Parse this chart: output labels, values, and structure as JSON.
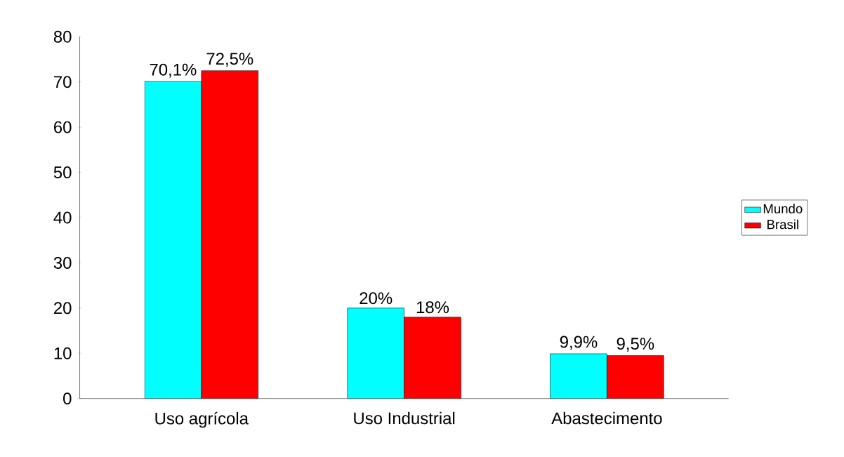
{
  "chart_data": {
    "type": "bar",
    "categories": [
      "Uso agrícola",
      "Uso Industrial",
      "Abastecimento"
    ],
    "series": [
      {
        "name": "Mundo",
        "color": "#00ffff",
        "values": [
          70.1,
          20,
          9.9
        ],
        "value_labels": [
          "70,1%",
          "20%",
          "9,9%"
        ]
      },
      {
        "name": "Brasil",
        "color": "#ff0000",
        "values": [
          72.5,
          18,
          9.5
        ],
        "value_labels": [
          "72,5%",
          "18%",
          "9,5%"
        ]
      }
    ],
    "ylim": [
      0,
      80
    ],
    "yticks": [
      0,
      10,
      20,
      30,
      40,
      50,
      60,
      70,
      80
    ],
    "grid": false,
    "legend": "right"
  }
}
